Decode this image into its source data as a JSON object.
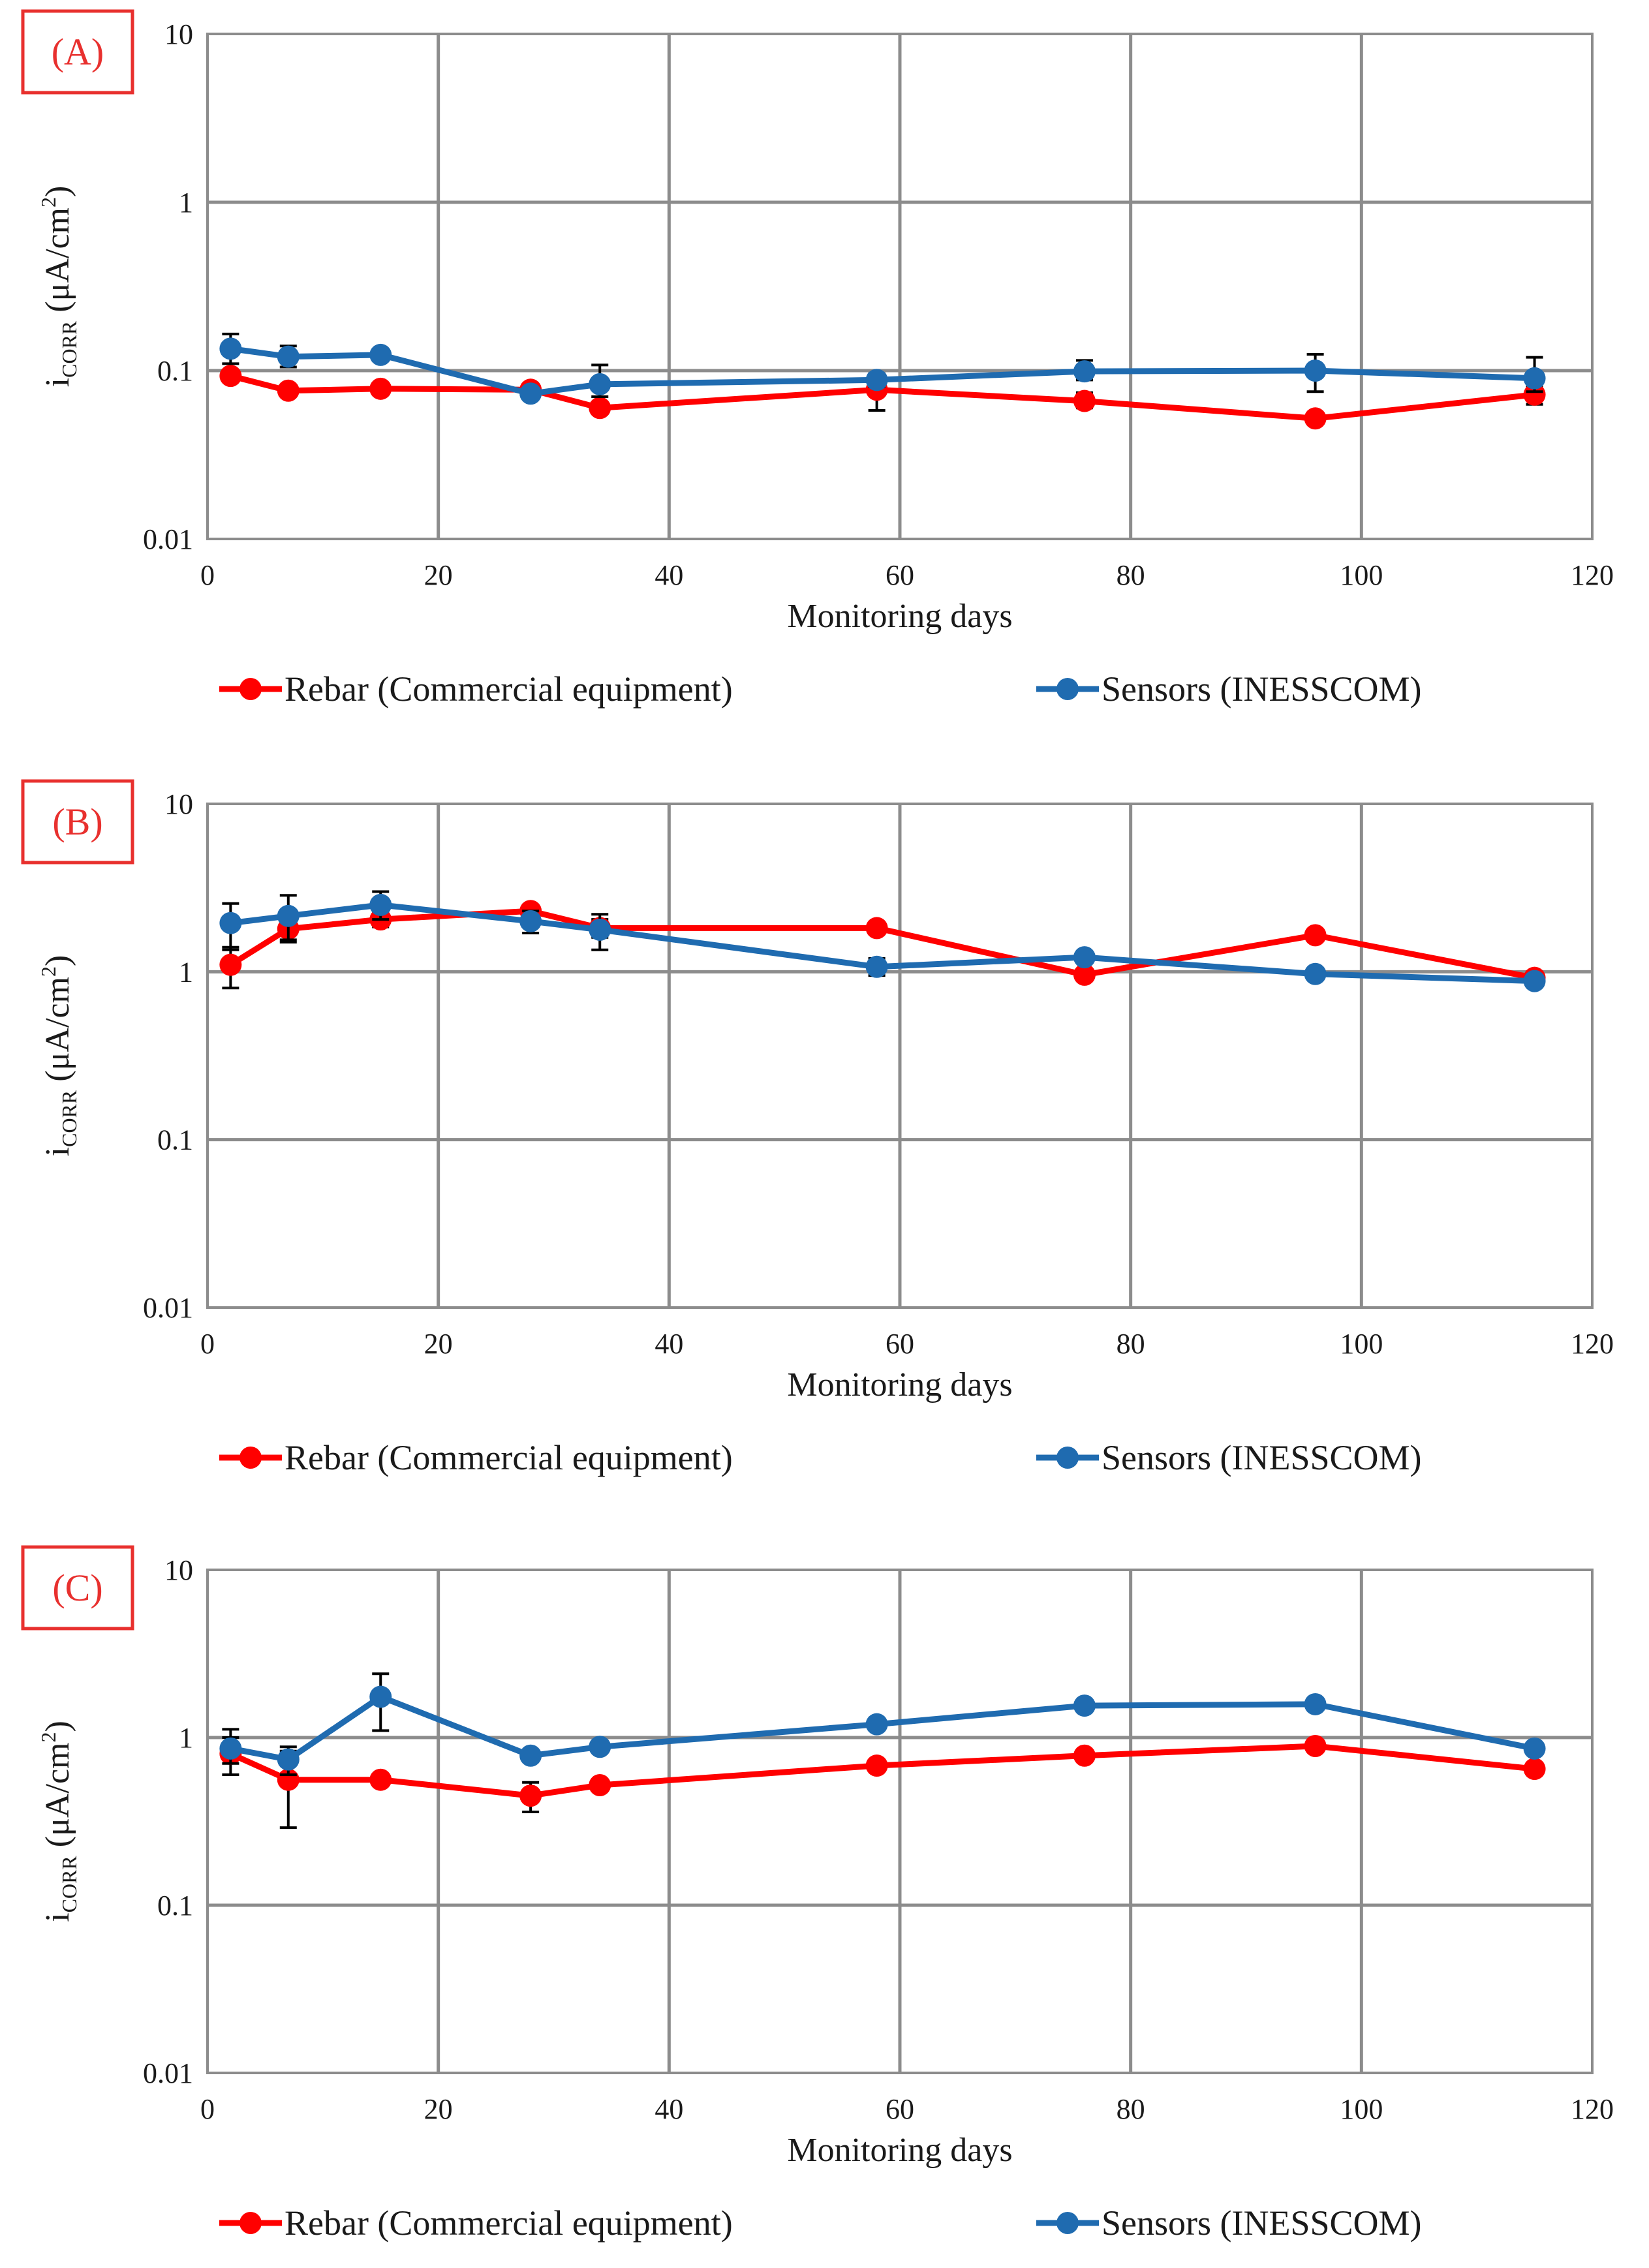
{
  "chart_data": [
    {
      "type": "line",
      "panel_label": "(A)",
      "xlabel": "Monitoring days",
      "ylabel": {
        "main": "i",
        "sub": "CORR",
        "unit_pre": " (μA/cm",
        "unit_sup": "2",
        "unit_post": ")"
      },
      "xlim": [
        0,
        120
      ],
      "ylim": [
        0.01,
        10
      ],
      "yscale": "log",
      "x_ticks": [
        "0",
        "20",
        "40",
        "60",
        "80",
        "100",
        "120"
      ],
      "y_ticks": [
        "0.01",
        "0.1",
        "1",
        "10"
      ],
      "grid": true,
      "legend_position": "bottom",
      "x": [
        2,
        7,
        15,
        28,
        34,
        58,
        76,
        96,
        115
      ],
      "series": [
        {
          "name": "Rebar (Commercial equipment)",
          "color": "#ff0000",
          "values": [
            0.093,
            0.076,
            0.078,
            0.077,
            0.06,
            0.077,
            0.066,
            0.052,
            0.072
          ],
          "err_low": [
            0.093,
            0.076,
            0.078,
            0.072,
            0.06,
            0.058,
            0.06,
            0.052,
            0.063
          ],
          "err_high": [
            0.093,
            0.076,
            0.078,
            0.082,
            0.06,
            0.088,
            0.074,
            0.052,
            0.08
          ]
        },
        {
          "name": "Sensors (INESSCOM)",
          "color": "#1f6bb0",
          "values": [
            0.135,
            0.121,
            0.124,
            0.073,
            0.083,
            0.088,
            0.099,
            0.1,
            0.09
          ],
          "err_low": [
            0.11,
            0.105,
            0.124,
            0.068,
            0.07,
            0.08,
            0.088,
            0.075,
            0.075
          ],
          "err_high": [
            0.165,
            0.14,
            0.124,
            0.078,
            0.108,
            0.096,
            0.115,
            0.125,
            0.12
          ]
        }
      ]
    },
    {
      "type": "line",
      "panel_label": "(B)",
      "xlabel": "Monitoring days",
      "ylabel": {
        "main": "i",
        "sub": "CORR",
        "unit_pre": " (μA/cm",
        "unit_sup": "2",
        "unit_post": ")"
      },
      "xlim": [
        0,
        120
      ],
      "ylim": [
        0.01,
        10
      ],
      "yscale": "log",
      "x_ticks": [
        "0",
        "20",
        "40",
        "60",
        "80",
        "100",
        "120"
      ],
      "y_ticks": [
        "0.01",
        "0.1",
        "1",
        "10"
      ],
      "grid": true,
      "legend_position": "bottom",
      "x": [
        2,
        7,
        15,
        28,
        34,
        58,
        76,
        96,
        115
      ],
      "series": [
        {
          "name": "Rebar (Commercial equipment)",
          "color": "#ff0000",
          "values": [
            1.1,
            1.8,
            2.05,
            2.3,
            1.82,
            1.82,
            0.96,
            1.65,
            0.92
          ],
          "err_low": [
            0.8,
            1.5,
            1.85,
            2.1,
            1.6,
            1.82,
            0.96,
            1.65,
            0.85
          ],
          "err_high": [
            1.4,
            2.1,
            2.25,
            2.5,
            2.05,
            1.82,
            0.96,
            1.65,
            1.0
          ]
        },
        {
          "name": "Sensors (INESSCOM)",
          "color": "#1f6bb0",
          "values": [
            1.95,
            2.15,
            2.5,
            2.0,
            1.78,
            1.07,
            1.22,
            0.97,
            0.88
          ],
          "err_low": [
            1.35,
            1.55,
            2.05,
            1.7,
            1.35,
            0.95,
            1.22,
            0.97,
            0.88
          ],
          "err_high": [
            2.55,
            2.85,
            3.0,
            2.3,
            2.2,
            1.2,
            1.22,
            0.97,
            0.88
          ]
        }
      ]
    },
    {
      "type": "line",
      "panel_label": "(C)",
      "xlabel": "Monitoring days",
      "ylabel": {
        "main": "i",
        "sub": "CORR",
        "unit_pre": " (μA/cm",
        "unit_sup": "2",
        "unit_post": ")"
      },
      "xlim": [
        0,
        120
      ],
      "ylim": [
        0.01,
        10
      ],
      "yscale": "log",
      "x_ticks": [
        "0",
        "20",
        "40",
        "60",
        "80",
        "100",
        "120"
      ],
      "y_ticks": [
        "0.01",
        "0.1",
        "1",
        "10"
      ],
      "grid": true,
      "legend_position": "bottom",
      "x": [
        2,
        7,
        15,
        28,
        34,
        58,
        76,
        96,
        115
      ],
      "series": [
        {
          "name": "Rebar (Commercial equipment)",
          "color": "#ff0000",
          "values": [
            0.8,
            0.56,
            0.56,
            0.45,
            0.52,
            0.68,
            0.78,
            0.89,
            0.65
          ],
          "err_low": [
            0.6,
            0.29,
            0.56,
            0.36,
            0.52,
            0.68,
            0.78,
            0.89,
            0.65
          ],
          "err_high": [
            1.0,
            0.83,
            0.56,
            0.54,
            0.52,
            0.68,
            0.78,
            0.89,
            0.65
          ]
        },
        {
          "name": "Sensors (INESSCOM)",
          "color": "#1f6bb0",
          "values": [
            0.86,
            0.74,
            1.75,
            0.78,
            0.88,
            1.2,
            1.55,
            1.58,
            0.86
          ],
          "err_low": [
            0.7,
            0.6,
            1.1,
            0.78,
            0.88,
            1.2,
            1.55,
            1.58,
            0.86
          ],
          "err_high": [
            1.12,
            0.88,
            2.4,
            0.78,
            0.88,
            1.2,
            1.55,
            1.58,
            0.86
          ]
        }
      ]
    }
  ]
}
